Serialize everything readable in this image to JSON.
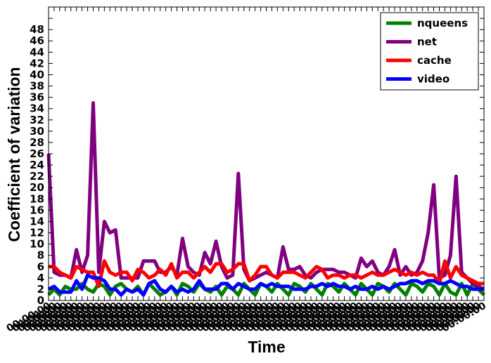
{
  "chart_data": {
    "type": "line",
    "title": "",
    "xlabel": "Time",
    "ylabel": "Coefficient of variation",
    "ylim": [
      0,
      52
    ],
    "yticks": [
      0,
      2,
      4,
      6,
      8,
      10,
      12,
      14,
      16,
      18,
      20,
      22,
      24,
      26,
      28,
      30,
      32,
      34,
      36,
      38,
      40,
      42,
      44,
      46,
      48
    ],
    "grid": false,
    "legend_position": "upper right",
    "x_tick_text": "00:00:00",
    "x": [
      0,
      1,
      2,
      3,
      4,
      5,
      6,
      7,
      8,
      9,
      10,
      11,
      12,
      13,
      14,
      15,
      16,
      17,
      18,
      19,
      20,
      21,
      22,
      23,
      24,
      25,
      26,
      27,
      28,
      29,
      30,
      31,
      32,
      33,
      34,
      35,
      36,
      37,
      38,
      39,
      40,
      41,
      42,
      43,
      44,
      45,
      46,
      47,
      48,
      49,
      50,
      51,
      52,
      53,
      54,
      55,
      56,
      57,
      58,
      59,
      60,
      61,
      62,
      63,
      64,
      65,
      66,
      67,
      68,
      69,
      70,
      71,
      72,
      73,
      74,
      75,
      76,
      77,
      78
    ],
    "series": [
      {
        "name": "nqueens",
        "color": "#008000",
        "values": [
          1.0,
          2.0,
          1.0,
          2.5,
          2.0,
          2.0,
          3.0,
          2.0,
          1.5,
          3.0,
          2.5,
          1.0,
          2.5,
          3.0,
          2.0,
          1.5,
          2.5,
          1.0,
          3.0,
          2.0,
          1.0,
          1.5,
          2.5,
          1.0,
          3.0,
          2.5,
          1.5,
          3.0,
          2.0,
          1.5,
          2.5,
          1.0,
          2.5,
          2.0,
          1.0,
          3.0,
          2.0,
          1.0,
          3.0,
          2.5,
          1.5,
          3.0,
          2.0,
          1.0,
          3.0,
          2.5,
          1.5,
          3.0,
          2.0,
          1.0,
          3.0,
          2.5,
          1.5,
          3.0,
          2.0,
          1.0,
          3.0,
          2.0,
          1.0,
          3.0,
          2.5,
          1.5,
          3.0,
          2.0,
          1.0,
          3.0,
          2.5,
          1.5,
          3.0,
          2.5,
          1.0,
          3.0,
          1.5,
          1.0,
          3.0,
          1.0,
          3.0,
          2.0,
          1.0
        ]
      },
      {
        "name": "net",
        "color": "#800080",
        "values": [
          26.0,
          5.0,
          4.5,
          4.5,
          4.0,
          9.0,
          5.0,
          8.0,
          35.0,
          5.0,
          14.0,
          12.0,
          12.5,
          4.0,
          4.0,
          4.0,
          4.0,
          7.0,
          7.0,
          7.0,
          5.0,
          5.0,
          6.0,
          4.5,
          11.0,
          6.0,
          5.0,
          4.5,
          8.5,
          6.5,
          10.5,
          6.0,
          4.0,
          4.5,
          22.5,
          5.5,
          3.5,
          4.0,
          4.5,
          5.0,
          4.5,
          4.0,
          9.5,
          5.5,
          5.5,
          6.0,
          4.5,
          4.0,
          5.0,
          5.5,
          5.5,
          5.5,
          5.0,
          5.0,
          4.5,
          4.0,
          7.5,
          6.0,
          7.0,
          5.0,
          4.5,
          6.0,
          9.0,
          4.5,
          6.0,
          4.5,
          5.0,
          7.0,
          12.0,
          20.5,
          4.0,
          4.5,
          8.0,
          22.0,
          5.0,
          4.0,
          3.0,
          2.5,
          2.0
        ]
      },
      {
        "name": "cache",
        "color": "#ff0000",
        "values": [
          6.0,
          6.0,
          5.0,
          4.5,
          4.0,
          6.0,
          5.5,
          5.0,
          5.0,
          2.5,
          7.0,
          5.0,
          4.5,
          5.0,
          5.0,
          3.5,
          5.5,
          5.0,
          4.0,
          4.5,
          5.5,
          4.5,
          6.5,
          4.0,
          5.0,
          5.0,
          4.0,
          5.0,
          6.0,
          5.0,
          6.5,
          6.5,
          5.0,
          5.5,
          6.5,
          6.5,
          3.5,
          4.5,
          6.0,
          6.0,
          4.5,
          4.0,
          5.0,
          5.0,
          5.0,
          4.5,
          4.0,
          5.0,
          6.0,
          5.5,
          4.0,
          4.5,
          4.5,
          4.0,
          4.5,
          4.5,
          4.0,
          4.5,
          5.0,
          4.5,
          4.5,
          5.0,
          5.5,
          5.0,
          4.5,
          5.0,
          4.5,
          5.0,
          4.5,
          4.5,
          3.0,
          7.0,
          4.0,
          6.0,
          4.5,
          4.0,
          3.5,
          3.0,
          3.0
        ]
      },
      {
        "name": "video",
        "color": "#0000ff",
        "values": [
          2.0,
          2.5,
          1.5,
          1.5,
          1.5,
          3.5,
          2.0,
          4.5,
          4.0,
          4.0,
          3.5,
          2.0,
          2.0,
          1.0,
          2.0,
          1.5,
          2.0,
          1.0,
          3.0,
          3.5,
          2.0,
          1.5,
          2.5,
          1.5,
          2.0,
          1.5,
          2.0,
          3.5,
          2.0,
          2.0,
          2.0,
          3.0,
          3.0,
          2.0,
          3.0,
          2.5,
          2.0,
          2.0,
          3.0,
          2.5,
          3.0,
          2.5,
          2.5,
          2.5,
          2.0,
          2.0,
          2.0,
          2.5,
          2.5,
          3.0,
          2.5,
          3.0,
          2.5,
          2.5,
          2.0,
          2.5,
          2.0,
          2.0,
          2.5,
          2.0,
          2.5,
          2.0,
          2.5,
          3.0,
          3.0,
          3.5,
          3.5,
          3.0,
          3.5,
          3.5,
          3.0,
          3.0,
          3.5,
          3.0,
          2.5,
          2.5,
          2.0,
          2.0,
          2.0
        ]
      }
    ]
  }
}
